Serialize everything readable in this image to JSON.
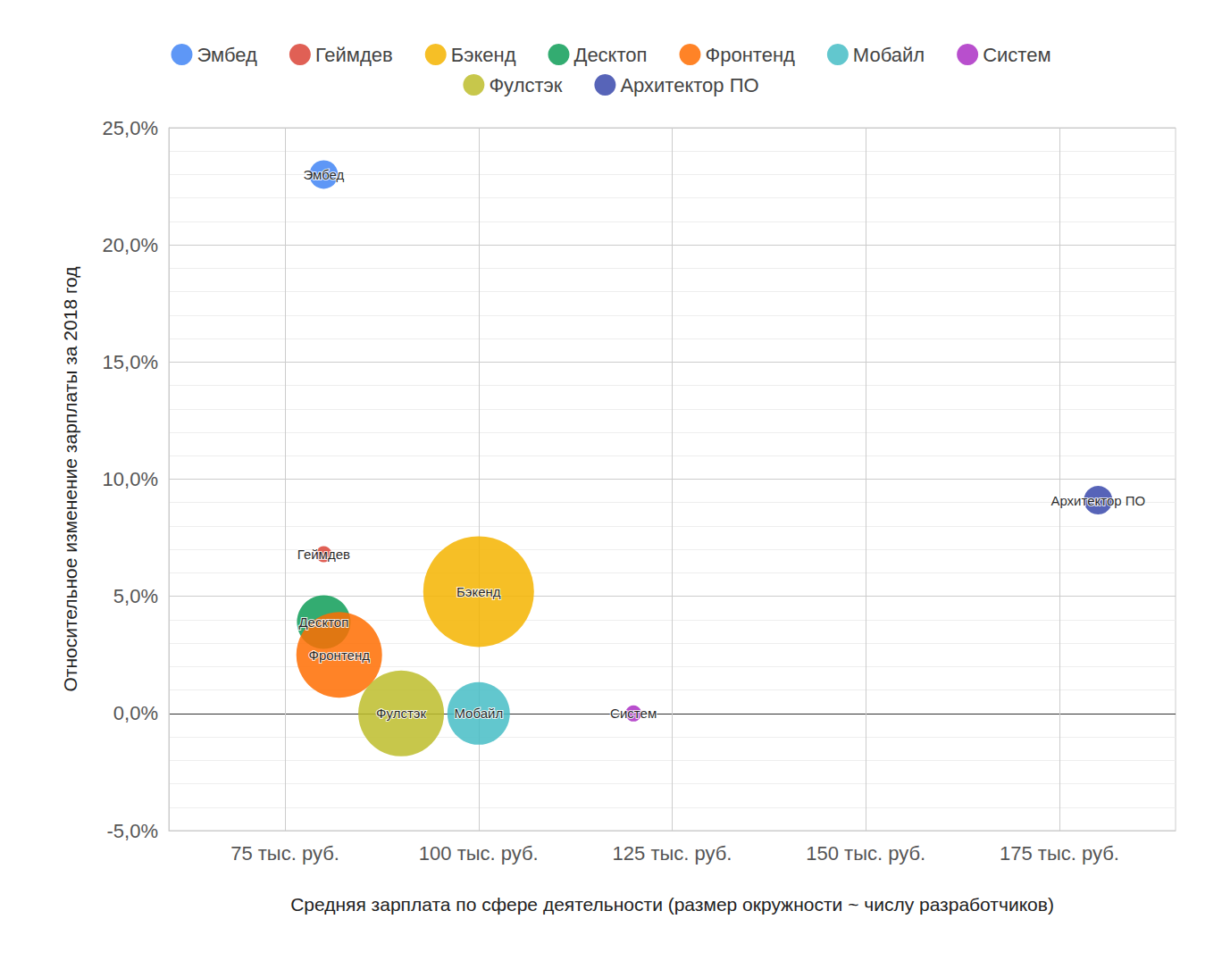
{
  "chart_data": {
    "type": "scatter",
    "xlabel": "Средняя зарплата по сфере деятельности (размер окружности ~ числу разработчиков)",
    "ylabel": "Относительное изменение зарплаты за 2018 год",
    "xlim": [
      60,
      190
    ],
    "ylim": [
      -5,
      25
    ],
    "xticks": [
      {
        "value": 75,
        "label": "75 тыс. руб."
      },
      {
        "value": 100,
        "label": "100 тыс. руб."
      },
      {
        "value": 125,
        "label": "125 тыс. руб."
      },
      {
        "value": 150,
        "label": "150 тыс. руб."
      },
      {
        "value": 175,
        "label": "175 тыс. руб."
      }
    ],
    "yticks": [
      {
        "value": -5,
        "label": "-5,0%"
      },
      {
        "value": 0,
        "label": "0,0%"
      },
      {
        "value": 5,
        "label": "5,0%"
      },
      {
        "value": 10,
        "label": "10,0%"
      },
      {
        "value": 15,
        "label": "15,0%"
      },
      {
        "value": 20,
        "label": "20,0%"
      },
      {
        "value": 25,
        "label": "25,0%"
      }
    ],
    "grid": true,
    "legend": "top",
    "marker": "circle",
    "series": [
      {
        "name": "Эмбед",
        "color": "#4285f4",
        "x": [
          80
        ],
        "values": [
          23.0
        ],
        "size": [
          256
        ]
      },
      {
        "name": "Геймдев",
        "color": "#db4437",
        "x": [
          80
        ],
        "values": [
          6.8
        ],
        "size": [
          81
        ]
      },
      {
        "name": "Бэкенд",
        "color": "#f4b400",
        "x": [
          100
        ],
        "values": [
          5.2
        ],
        "size": [
          3844
        ]
      },
      {
        "name": "Десктоп",
        "color": "#0f9d58",
        "x": [
          80
        ],
        "values": [
          3.9
        ],
        "size": [
          900
        ]
      },
      {
        "name": "Фронтенд",
        "color": "#ff6d01",
        "x": [
          82
        ],
        "values": [
          2.5
        ],
        "size": [
          2304
        ]
      },
      {
        "name": "Мобайл",
        "color": "#46bdc6",
        "x": [
          100
        ],
        "values": [
          0.0
        ],
        "size": [
          1225
        ]
      },
      {
        "name": "Систем",
        "color": "#ab30c4",
        "x": [
          120
        ],
        "values": [
          0.0
        ],
        "size": [
          81
        ]
      },
      {
        "name": "Фулстэк",
        "color": "#bdbd2b",
        "x": [
          90
        ],
        "values": [
          0.0
        ],
        "size": [
          2304
        ]
      },
      {
        "name": "Архитектор ПО",
        "color": "#3949ab",
        "x": [
          180
        ],
        "values": [
          9.1
        ],
        "size": [
          256
        ]
      }
    ]
  }
}
